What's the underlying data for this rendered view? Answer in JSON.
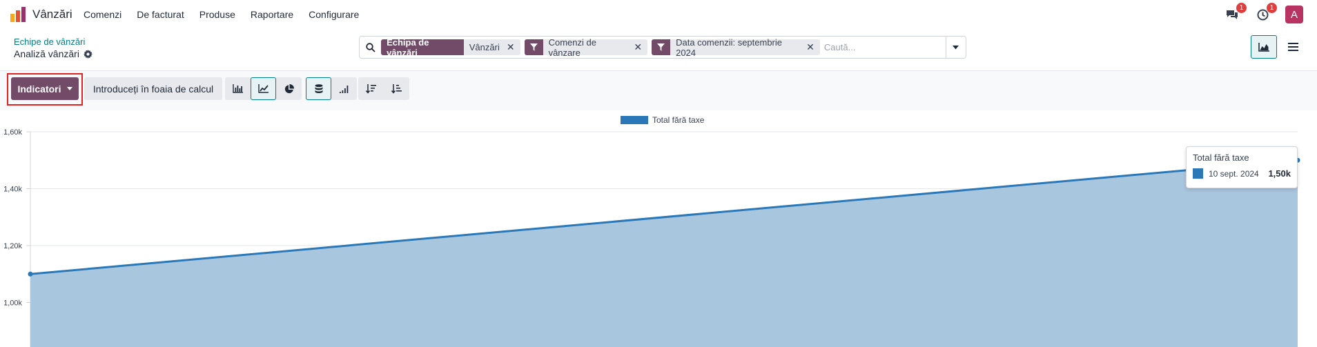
{
  "app": {
    "name": "Vânzări",
    "menu": [
      "Comenzi",
      "De facturat",
      "Produse",
      "Raportare",
      "Configurare"
    ],
    "messages_badge": "1",
    "activities_badge": "1",
    "avatar_initial": "A"
  },
  "breadcrumb": {
    "parent": "Echipe de vânzări",
    "current": "Analiză vânzări"
  },
  "search": {
    "facets": [
      {
        "label": "Echipa de vânzări",
        "value": "Vânzări",
        "type": "group"
      },
      {
        "label": "",
        "value": "Comenzi de vânzare",
        "type": "filter"
      },
      {
        "label": "",
        "value": "Data comenzii: septembrie 2024",
        "type": "filter"
      }
    ],
    "placeholder": "Caută..."
  },
  "toolbar": {
    "measures_label": "Indicatori",
    "spreadsheet_label": "Introduceți în foaia de calcul"
  },
  "colors": {
    "brand": "#714b67",
    "accent": "#017e84",
    "series": "#2a78b8",
    "highlight_box": "#e02424"
  },
  "chart_data": {
    "type": "area",
    "x": [
      "",
      "10 sept. 2024"
    ],
    "series": [
      {
        "name": "Total fără taxe",
        "values": [
          1100,
          1500
        ]
      }
    ],
    "yticks": [
      "1,00k",
      "1,20k",
      "1,40k",
      "1,60k"
    ],
    "ylim": [
      1000,
      1600
    ],
    "legend": "top-center",
    "grid": true,
    "tooltip": {
      "title": "Total fără taxe",
      "label": "10 sept. 2024",
      "value": "1,50k"
    }
  }
}
